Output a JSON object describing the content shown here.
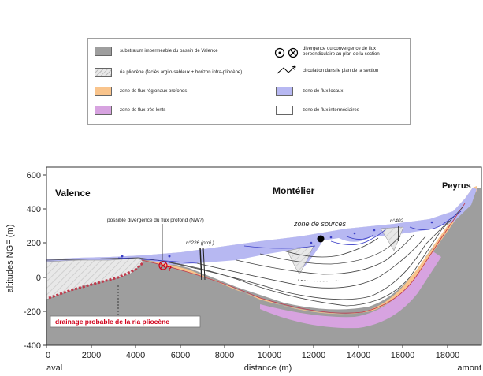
{
  "legend": {
    "items": [
      {
        "label": "substratum imperméable du bassin de Valence",
        "color": "#9e9e9e"
      },
      {
        "label": "ria pliocène (faciès argilo-sableux + horizon infra-pliocène)",
        "color": "#e8e8e8"
      },
      {
        "label": "zone de flux régionaux profonds",
        "color": "#f9c48c"
      },
      {
        "label": "zone de flux très lents",
        "color": "#d7a3e0"
      },
      {
        "label": "divergence ou convergence de flux perpendiculaire au plan de la section",
        "color": "#000000"
      },
      {
        "label": "circulation dans le plan de la section",
        "color": "#000000"
      },
      {
        "label": "zone de flux locaux",
        "color": "#b7b8f2"
      },
      {
        "label": "zone de flux intermédiaires",
        "color": "#ffffff"
      }
    ]
  },
  "axes": {
    "y_label": "altitudes NGF (m)",
    "x_label": "distance (m)",
    "y_ticks": [
      "600",
      "400",
      "200",
      "0",
      "-200",
      "-400"
    ],
    "x_ticks": [
      "0",
      "2000",
      "4000",
      "6000",
      "8000",
      "10000",
      "12000",
      "14000",
      "16000",
      "18000"
    ],
    "x_left_label": "aval",
    "x_right_label": "amont"
  },
  "places": {
    "valence": "Valence",
    "montelier": "Montélier",
    "peyrus": "Peyrus"
  },
  "annotations": {
    "divergence": "possible divergence du flux profond (NW?)",
    "sources": "zone de sources",
    "well_226": "n°226 (proj.)",
    "well_402": "n°402",
    "question": "?",
    "drainage": "drainage probable de la ria pliocène"
  },
  "colors": {
    "substratum": "#9e9e9e",
    "ria": "#e8e8e8",
    "regional": "#f9c48c",
    "slow": "#d7a3e0",
    "local": "#b7b8f2",
    "flow_line": "#c0394b",
    "drainage_text": "#d0021b"
  }
}
